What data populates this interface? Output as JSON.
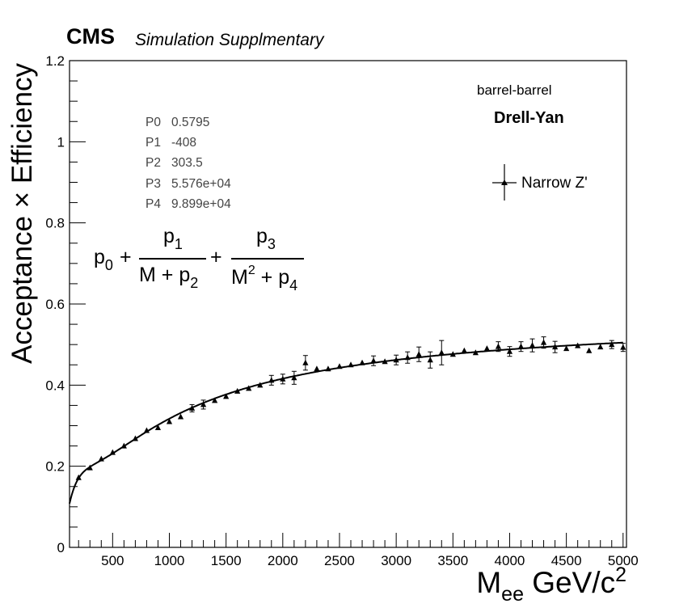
{
  "header": {
    "experiment": "CMS",
    "subtitle": "Simulation Supplmentary"
  },
  "annotations": {
    "region": "barrel-barrel",
    "process": "Drell-Yan"
  },
  "fit_parameters": [
    {
      "name": "P0",
      "value": "0.5795"
    },
    {
      "name": "P1",
      "value": "-408"
    },
    {
      "name": "P2",
      "value": "303.5"
    },
    {
      "name": "P3",
      "value": "5.576e+04"
    },
    {
      "name": "P4",
      "value": "9.899e+04"
    }
  ],
  "formula": {
    "p0": "p",
    "p0_sub": "0",
    "plus": "+",
    "num1": "p",
    "num1_sub": "1",
    "den1": "M + p",
    "den1_sub": "2",
    "num2": "p",
    "num2_sub": "3",
    "den2_a": "M",
    "den2_sup": "2",
    "den2_b": " + p",
    "den2_sub": "4"
  },
  "axes": {
    "ylabel": "Acceptance × Efficiency",
    "xlabel_main": "M",
    "xlabel_sub": "ee",
    "xlabel_unit": " GeV/c",
    "xlabel_sup": "2"
  },
  "chart_data": {
    "type": "scatter",
    "title": "",
    "xlim": [
      120,
      5030
    ],
    "ylim": [
      0,
      1.2
    ],
    "x_ticks": [
      500,
      1000,
      1500,
      2000,
      2500,
      3000,
      3500,
      4000,
      4500,
      5000
    ],
    "y_ticks": [
      0,
      0.2,
      0.4,
      0.6,
      0.8,
      1,
      1.2
    ],
    "x_tick_labels": [
      "500",
      "1000",
      "1500",
      "2000",
      "2500",
      "3000",
      "3500",
      "4000",
      "4500",
      "5000"
    ],
    "y_tick_labels": [
      "0",
      "0.2",
      "0.4",
      "0.6",
      "0.8",
      "1",
      "1.2"
    ],
    "legend_position": "top-right",
    "series": [
      {
        "name": "Narrow Z'",
        "marker": "triangle",
        "color": "#000000",
        "x": [
          200,
          300,
          400,
          500,
          600,
          700,
          800,
          900,
          1000,
          1100,
          1200,
          1300,
          1400,
          1500,
          1600,
          1700,
          1800,
          1900,
          2000,
          2100,
          2200,
          2300,
          2400,
          2500,
          2600,
          2700,
          2800,
          2900,
          3000,
          3100,
          3200,
          3300,
          3400,
          3500,
          3600,
          3700,
          3800,
          3900,
          4000,
          4100,
          4200,
          4300,
          4400,
          4500,
          4600,
          4700,
          4800,
          4900,
          5000
        ],
        "y": [
          0.172,
          0.196,
          0.218,
          0.234,
          0.25,
          0.268,
          0.288,
          0.295,
          0.31,
          0.322,
          0.343,
          0.352,
          0.362,
          0.372,
          0.385,
          0.392,
          0.4,
          0.412,
          0.415,
          0.418,
          0.455,
          0.44,
          0.44,
          0.446,
          0.45,
          0.455,
          0.46,
          0.458,
          0.462,
          0.468,
          0.476,
          0.462,
          0.48,
          0.476,
          0.485,
          0.48,
          0.49,
          0.495,
          0.483,
          0.495,
          0.498,
          0.505,
          0.494,
          0.49,
          0.497,
          0.485,
          0.494,
          0.5,
          0.493
        ],
        "yerr": [
          0.006,
          0.006,
          0.006,
          0.006,
          0.006,
          0.006,
          0.006,
          0.006,
          0.006,
          0.006,
          0.009,
          0.011,
          0.007,
          0.007,
          0.006,
          0.006,
          0.007,
          0.012,
          0.012,
          0.016,
          0.018,
          0.006,
          0.006,
          0.006,
          0.006,
          0.006,
          0.012,
          0.006,
          0.012,
          0.014,
          0.018,
          0.02,
          0.03,
          0.006,
          0.006,
          0.006,
          0.006,
          0.012,
          0.012,
          0.012,
          0.016,
          0.014,
          0.014,
          0.006,
          0.006,
          0.006,
          0.006,
          0.01,
          0.01
        ]
      }
    ],
    "fit": {
      "function": "p0 + p1/(M+p2) + p3/(M^2+p4)",
      "p0": 0.5795,
      "p1": -408,
      "p2": 303.5,
      "p3": 55760,
      "p4": 98990,
      "x_range": [
        120,
        5000
      ],
      "color": "#000000"
    }
  }
}
